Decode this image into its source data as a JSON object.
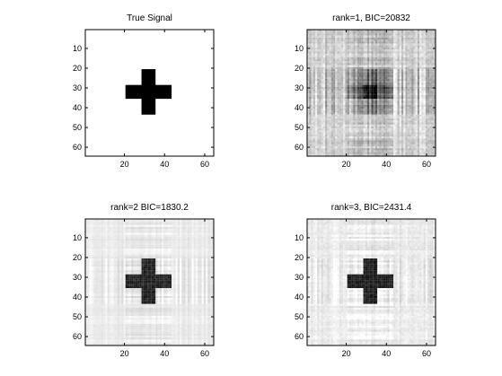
{
  "chart_data": [
    {
      "type": "heatmap",
      "title": "True Signal",
      "xlabel": "",
      "ylabel": "",
      "xlim": [
        0.5,
        64.5
      ],
      "ylim": [
        64.5,
        0.5
      ],
      "xticks": [
        20,
        40,
        60
      ],
      "yticks": [
        10,
        20,
        30,
        40,
        50,
        60
      ],
      "colormap": "gray",
      "matrix_size": [
        64,
        64
      ],
      "signal": "plus-shaped cross of value 1 on zero background",
      "cross": {
        "center": [
          32,
          32
        ],
        "arm_length": 11,
        "arm_halfwidth": 3
      },
      "background_gray": "#ffffff",
      "cross_gray": "#000000",
      "noise_amplitude": 0
    },
    {
      "type": "heatmap",
      "title": "rank=1, BIC=20832",
      "xlabel": "",
      "ylabel": "",
      "xlim": [
        0.5,
        64.5
      ],
      "ylim": [
        64.5,
        0.5
      ],
      "xticks": [
        20,
        40,
        60
      ],
      "yticks": [
        10,
        20,
        30,
        40,
        50,
        60
      ],
      "colormap": "gray",
      "rank": 1,
      "bic": 20832,
      "background_gray": "#d0d0d0",
      "noise_amplitude": 0.35
    },
    {
      "type": "heatmap",
      "title": "rank=2  BIC=1830.2",
      "xlabel": "",
      "ylabel": "",
      "xlim": [
        0.5,
        64.5
      ],
      "ylim": [
        64.5,
        0.5
      ],
      "xticks": [
        20,
        40,
        60
      ],
      "yticks": [
        10,
        20,
        30,
        40,
        50,
        60
      ],
      "colormap": "gray",
      "rank": 2,
      "bic": 1830.2,
      "background_gray": "#ebebeb",
      "cross_gray": "#141414",
      "noise_amplitude": 0.12
    },
    {
      "type": "heatmap",
      "title": "rank=3,  BIC=2431.4",
      "xlabel": "",
      "ylabel": "",
      "xlim": [
        0.5,
        64.5
      ],
      "ylim": [
        64.5,
        0.5
      ],
      "xticks": [
        20,
        40,
        60
      ],
      "yticks": [
        10,
        20,
        30,
        40,
        50,
        60
      ],
      "colormap": "gray",
      "rank": 3,
      "bic": 2431.4,
      "background_gray": "#ebebeb",
      "cross_gray": "#0f0f0f",
      "noise_amplitude": 0.14
    }
  ]
}
